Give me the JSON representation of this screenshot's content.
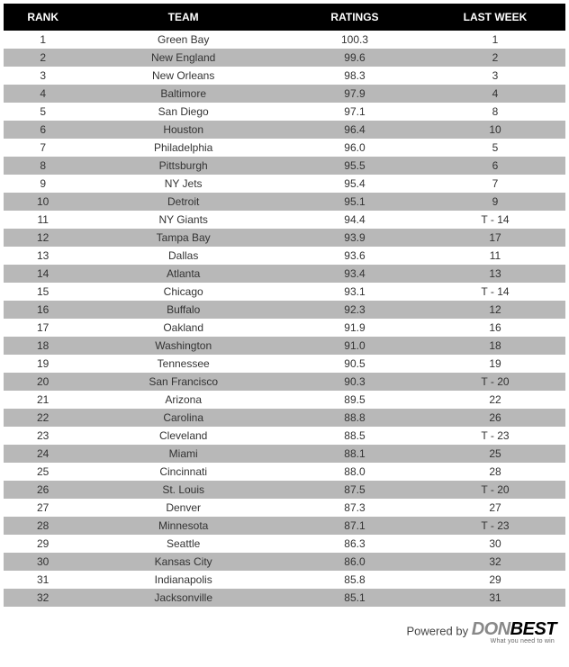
{
  "table": {
    "columns": [
      "RANK",
      "TEAM",
      "RATINGS",
      "LAST WEEK"
    ],
    "column_widths_pct": [
      14,
      36,
      25,
      25
    ],
    "header_bg": "#000000",
    "header_color": "#ffffff",
    "row_even_bg": "#b8b8b8",
    "row_odd_bg": "#ffffff",
    "font_size_pt": 9,
    "rows": [
      {
        "rank": "1",
        "team": "Green Bay",
        "ratings": "100.3",
        "last_week": "1"
      },
      {
        "rank": "2",
        "team": "New England",
        "ratings": "99.6",
        "last_week": "2"
      },
      {
        "rank": "3",
        "team": "New Orleans",
        "ratings": "98.3",
        "last_week": "3"
      },
      {
        "rank": "4",
        "team": "Baltimore",
        "ratings": "97.9",
        "last_week": "4"
      },
      {
        "rank": "5",
        "team": "San Diego",
        "ratings": "97.1",
        "last_week": "8"
      },
      {
        "rank": "6",
        "team": "Houston",
        "ratings": "96.4",
        "last_week": "10"
      },
      {
        "rank": "7",
        "team": "Philadelphia",
        "ratings": "96.0",
        "last_week": "5"
      },
      {
        "rank": "8",
        "team": "Pittsburgh",
        "ratings": "95.5",
        "last_week": "6"
      },
      {
        "rank": "9",
        "team": "NY Jets",
        "ratings": "95.4",
        "last_week": "7"
      },
      {
        "rank": "10",
        "team": "Detroit",
        "ratings": "95.1",
        "last_week": "9"
      },
      {
        "rank": "11",
        "team": "NY Giants",
        "ratings": "94.4",
        "last_week": "T - 14"
      },
      {
        "rank": "12",
        "team": "Tampa Bay",
        "ratings": "93.9",
        "last_week": "17"
      },
      {
        "rank": "13",
        "team": "Dallas",
        "ratings": "93.6",
        "last_week": "11"
      },
      {
        "rank": "14",
        "team": "Atlanta",
        "ratings": "93.4",
        "last_week": "13"
      },
      {
        "rank": "15",
        "team": "Chicago",
        "ratings": "93.1",
        "last_week": "T - 14"
      },
      {
        "rank": "16",
        "team": "Buffalo",
        "ratings": "92.3",
        "last_week": "12"
      },
      {
        "rank": "17",
        "team": "Oakland",
        "ratings": "91.9",
        "last_week": "16"
      },
      {
        "rank": "18",
        "team": "Washington",
        "ratings": "91.0",
        "last_week": "18"
      },
      {
        "rank": "19",
        "team": "Tennessee",
        "ratings": "90.5",
        "last_week": "19"
      },
      {
        "rank": "20",
        "team": "San Francisco",
        "ratings": "90.3",
        "last_week": "T - 20"
      },
      {
        "rank": "21",
        "team": "Arizona",
        "ratings": "89.5",
        "last_week": "22"
      },
      {
        "rank": "22",
        "team": "Carolina",
        "ratings": "88.8",
        "last_week": "26"
      },
      {
        "rank": "23",
        "team": "Cleveland",
        "ratings": "88.5",
        "last_week": "T - 23"
      },
      {
        "rank": "24",
        "team": "Miami",
        "ratings": "88.1",
        "last_week": "25"
      },
      {
        "rank": "25",
        "team": "Cincinnati",
        "ratings": "88.0",
        "last_week": "28"
      },
      {
        "rank": "26",
        "team": "St. Louis",
        "ratings": "87.5",
        "last_week": "T - 20"
      },
      {
        "rank": "27",
        "team": "Denver",
        "ratings": "87.3",
        "last_week": "27"
      },
      {
        "rank": "28",
        "team": "Minnesota",
        "ratings": "87.1",
        "last_week": "T - 23"
      },
      {
        "rank": "29",
        "team": "Seattle",
        "ratings": "86.3",
        "last_week": "30"
      },
      {
        "rank": "30",
        "team": "Kansas City",
        "ratings": "86.0",
        "last_week": "32"
      },
      {
        "rank": "31",
        "team": "Indianapolis",
        "ratings": "85.8",
        "last_week": "29"
      },
      {
        "rank": "32",
        "team": "Jacksonville",
        "ratings": "85.1",
        "last_week": "31"
      }
    ]
  },
  "footer": {
    "powered_text": "Powered by ",
    "brand_part1": "DON",
    "brand_part2": "BEST",
    "tagline": "What you need to win"
  }
}
